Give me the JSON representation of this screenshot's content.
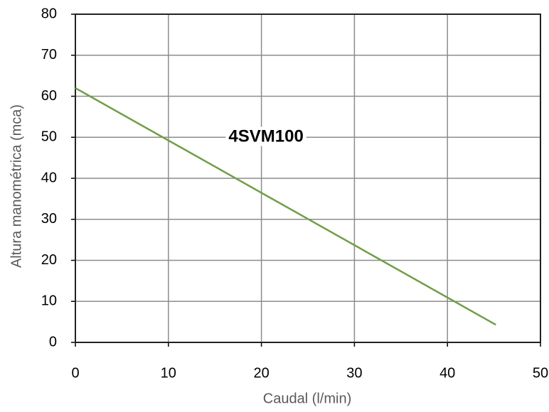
{
  "chart_data": {
    "type": "line",
    "annotation": "4SVM100",
    "annotation_at": [
      20.5,
      50
    ],
    "xlabel": "Caudal (l/min)",
    "ylabel": "Altura manométrica (mca)",
    "x": [
      0,
      45.2
    ],
    "values": [
      62,
      4.3
    ],
    "color": "#6f9f45",
    "xlim": [
      0,
      50
    ],
    "xticks": [
      0,
      10,
      20,
      30,
      40,
      50
    ],
    "ylim": [
      0,
      80
    ],
    "yticks": [
      0,
      10,
      20,
      30,
      40,
      50,
      60,
      70,
      80
    ],
    "grid": true
  }
}
